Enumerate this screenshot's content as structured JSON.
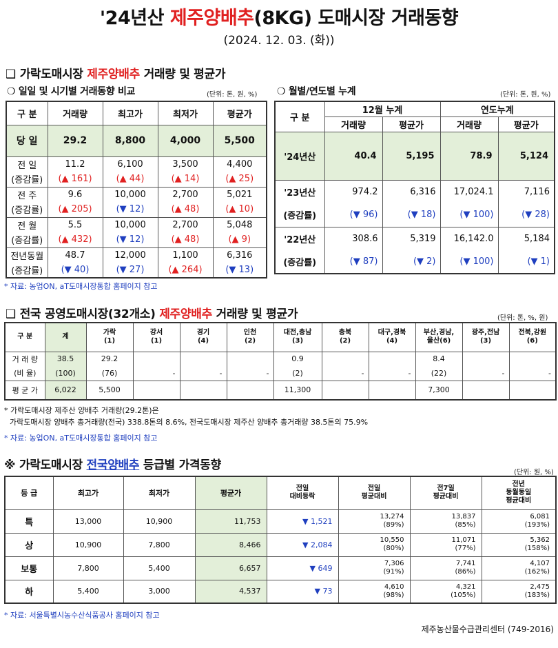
{
  "title": {
    "pre": "'24년산 ",
    "item": "제주양배추",
    "post": "(8KG) 도매시장 거래동향"
  },
  "date": "(2024. 12. 03. (화))",
  "sec1": {
    "bullet": "❑",
    "pre": "가락도매시장 ",
    "item": "제주양배추",
    "post": " 거래량 및 평균가"
  },
  "sub1": {
    "bullet": "❍",
    "label": "일일 및 시기별 거래동향 비교",
    "unit": "(단위: 톤, 원, %)"
  },
  "sub2": {
    "bullet": "❍",
    "label": "월별/연도별 누계",
    "unit": "(단위: 톤, 원, %)"
  },
  "daily": {
    "headers": [
      "구 분",
      "거래량",
      "최고가",
      "최저가",
      "평균가"
    ],
    "today": {
      "label": "당 일",
      "values": [
        "29.2",
        "8,800",
        "4,000",
        "5,500"
      ]
    },
    "rows": [
      {
        "label": "전 일",
        "sub": "(증감률)",
        "values": [
          "11.2",
          "6,100",
          "3,500",
          "4,400"
        ],
        "changes": [
          {
            "dir": "up",
            "text": "(▲ 161)"
          },
          {
            "dir": "up",
            "text": "(▲ 44)"
          },
          {
            "dir": "up",
            "text": "(▲ 14)"
          },
          {
            "dir": "up",
            "text": "(▲ 25)"
          }
        ]
      },
      {
        "label": "전 주",
        "sub": "(증감률)",
        "values": [
          "9.6",
          "10,000",
          "2,700",
          "5,021"
        ],
        "changes": [
          {
            "dir": "up",
            "text": "(▲ 205)"
          },
          {
            "dir": "dn",
            "text": "(▼ 12)"
          },
          {
            "dir": "up",
            "text": "(▲ 48)"
          },
          {
            "dir": "up",
            "text": "(▲ 10)"
          }
        ]
      },
      {
        "label": "전 월",
        "sub": "(증감률)",
        "values": [
          "5.5",
          "10,000",
          "2,700",
          "5,048"
        ],
        "changes": [
          {
            "dir": "up",
            "text": "(▲ 432)"
          },
          {
            "dir": "dn",
            "text": "(▼ 12)"
          },
          {
            "dir": "up",
            "text": "(▲ 48)"
          },
          {
            "dir": "up",
            "text": "(▲ 9)"
          }
        ]
      },
      {
        "label": "전년동월",
        "sub": "(증감률)",
        "values": [
          "48.7",
          "12,000",
          "1,100",
          "6,316"
        ],
        "changes": [
          {
            "dir": "dn",
            "text": "(▼ 40)"
          },
          {
            "dir": "dn",
            "text": "(▼ 27)"
          },
          {
            "dir": "up",
            "text": "(▲ 264)"
          },
          {
            "dir": "dn",
            "text": "(▼ 13)"
          }
        ]
      }
    ]
  },
  "cumul": {
    "h_label": "구 분",
    "h_month": "12월 누계",
    "h_year": "연도누계",
    "h_sub": [
      "거래량",
      "평균가",
      "거래량",
      "평균가"
    ],
    "cur": {
      "label": "'24년산",
      "values": [
        "40.4",
        "5,195",
        "78.9",
        "5,124"
      ]
    },
    "rows": [
      {
        "label": "'23년산",
        "sub": "(증감률)",
        "values": [
          "974.2",
          "6,316",
          "17,024.1",
          "7,116"
        ],
        "changes": [
          {
            "dir": "dn",
            "text": "(▼ 96)"
          },
          {
            "dir": "dn",
            "text": "(▼ 18)"
          },
          {
            "dir": "dn",
            "text": "(▼ 100)"
          },
          {
            "dir": "dn",
            "text": "(▼ 28)"
          }
        ]
      },
      {
        "label": "'22년산",
        "sub": "(증감률)",
        "values": [
          "308.6",
          "5,319",
          "16,142.0",
          "5,184"
        ],
        "changes": [
          {
            "dir": "dn",
            "text": "(▼ 87)"
          },
          {
            "dir": "dn",
            "text": "(▼ 2)"
          },
          {
            "dir": "dn",
            "text": "(▼ 100)"
          },
          {
            "dir": "dn",
            "text": "(▼ 1)"
          }
        ]
      }
    ]
  },
  "note1": "* 자료: 농업ON, aT도매시장통합 홈페이지 참고",
  "sec2": {
    "bullet": "❑",
    "pre": "전국 공영도매시장(32개소) ",
    "item": "제주양배추",
    "post": " 거래량 및 평균가",
    "unit": "(단위: 톤, %, 원)"
  },
  "nat": {
    "headers": [
      {
        "l1": "구 분",
        "l2": ""
      },
      {
        "l1": "계",
        "l2": ""
      },
      {
        "l1": "가락",
        "l2": "(1)"
      },
      {
        "l1": "강서",
        "l2": "(1)"
      },
      {
        "l1": "경기",
        "l2": "(4)"
      },
      {
        "l1": "인천",
        "l2": "(2)"
      },
      {
        "l1": "대전,충남",
        "l2": "(3)"
      },
      {
        "l1": "충북",
        "l2": "(2)"
      },
      {
        "l1": "대구,경북",
        "l2": "(4)"
      },
      {
        "l1": "부산,경남,",
        "l2": "울산(6)"
      },
      {
        "l1": "광주,전남",
        "l2": "(3)"
      },
      {
        "l1": "전북,강원",
        "l2": "(6)"
      }
    ],
    "vol_label": "거 래 량",
    "ratio_label": "(비 율)",
    "price_label": "평 균 가",
    "vol": [
      "38.5",
      "29.2",
      "",
      "",
      "",
      "0.9",
      "",
      "",
      "8.4",
      "",
      ""
    ],
    "ratio": [
      "(100)",
      "(76)",
      "-",
      "-",
      "-",
      "(2)",
      "-",
      "-",
      "(22)",
      "-",
      "-"
    ],
    "price": [
      "6,022",
      "5,500",
      "",
      "",
      "",
      "11,300",
      "",
      "",
      "7,300",
      "",
      ""
    ]
  },
  "note2a": "* 가락도매시장 제주산 양배추 거래량(29.2톤)은",
  "note2b": "가락도매시장 양배추 총거래량(전국) 338.8톤의 8.6%, 전국도매시장 제주산 양배추 총거래량 38.5톤의 75.9%",
  "note2c": "* 자료: 농업ON, aT도매시장통합 홈페이지 참고",
  "sec3": {
    "bullet": "※",
    "pre": "가락도매시장 ",
    "item": "전국양배추",
    "post": " 등급별 가격동향",
    "unit": "(단위: 원, %)"
  },
  "grade": {
    "headers": [
      {
        "l1": "등 급",
        "l2": "",
        "l3": ""
      },
      {
        "l1": "최고가",
        "l2": "",
        "l3": ""
      },
      {
        "l1": "최저가",
        "l2": "",
        "l3": ""
      },
      {
        "l1": "평균가",
        "l2": "",
        "l3": ""
      },
      {
        "l1": "전일",
        "l2": "대비등락",
        "l3": ""
      },
      {
        "l1": "전일",
        "l2": "평균대비",
        "l3": ""
      },
      {
        "l1": "전7일",
        "l2": "평균대비",
        "l3": ""
      },
      {
        "l1": "전년",
        "l2": "동월동일",
        "l3": "평균대비"
      }
    ],
    "rows": [
      {
        "label": "특",
        "max": "13,000",
        "min": "10,900",
        "avg": "11,753",
        "chg": "▼ 1,521",
        "d1": "13,274",
        "d1p": "(89%)",
        "d7": "13,837",
        "d7p": "(85%)",
        "ly": "6,081",
        "lyp": "(193%)"
      },
      {
        "label": "상",
        "max": "10,900",
        "min": "7,800",
        "avg": "8,466",
        "chg": "▼ 2,084",
        "d1": "10,550",
        "d1p": "(80%)",
        "d7": "11,071",
        "d7p": "(77%)",
        "ly": "5,362",
        "lyp": "(158%)"
      },
      {
        "label": "보통",
        "max": "7,800",
        "min": "5,400",
        "avg": "6,657",
        "chg": "▼ 649",
        "d1": "7,306",
        "d1p": "(91%)",
        "d7": "7,741",
        "d7p": "(86%)",
        "ly": "4,107",
        "lyp": "(162%)"
      },
      {
        "label": "하",
        "max": "5,400",
        "min": "3,000",
        "avg": "4,537",
        "chg": "▼ 73",
        "d1": "4,610",
        "d1p": "(98%)",
        "d7": "4,321",
        "d7p": "(105%)",
        "ly": "2,475",
        "lyp": "(183%)"
      }
    ]
  },
  "note3": "* 자료: 서울특별시농수산식품공사 홈페이지 참고",
  "footer": "제주농산물수급관리센터 (749-2016)"
}
